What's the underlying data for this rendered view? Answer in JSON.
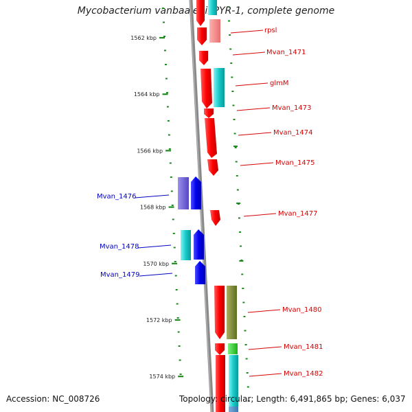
{
  "title": "Mycobacterium vanbaalenii PYR-1, complete genome",
  "accession": "Accession: NC_008726",
  "summary": "Topology: circular; Length: 6,491,865 bp; Genes: 6,037",
  "colors": {
    "backbone": "#8a8a8a",
    "ticks": "#1e8a1e",
    "forward_label": "#d40000",
    "reverse_label": "#0000c0"
  },
  "scale": [
    {
      "label": "1562 kbp",
      "kbp": 1562
    },
    {
      "label": "1564 kbp",
      "kbp": 1564
    },
    {
      "label": "1566 kbp",
      "kbp": 1566
    },
    {
      "label": "1568 kbp",
      "kbp": 1568
    },
    {
      "label": "1570 kbp",
      "kbp": 1570
    },
    {
      "label": "1572 kbp",
      "kbp": 1572
    },
    {
      "label": "1574 kbp",
      "kbp": 1574
    }
  ],
  "forward_labels": [
    {
      "id": "rpsl",
      "text": "rpsl"
    },
    {
      "id": "mvan_1471",
      "text": "Mvan_1471"
    },
    {
      "id": "glmm",
      "text": "glmM"
    },
    {
      "id": "mvan_1473",
      "text": "Mvan_1473"
    },
    {
      "id": "mvan_1474",
      "text": "Mvan_1474"
    },
    {
      "id": "mvan_1475",
      "text": "Mvan_1475"
    },
    {
      "id": "mvan_1477",
      "text": "Mvan_1477"
    },
    {
      "id": "mvan_1480",
      "text": "Mvan_1480"
    },
    {
      "id": "mvan_1481",
      "text": "Mvan_1481"
    },
    {
      "id": "mvan_1482",
      "text": "Mvan_1482"
    }
  ],
  "reverse_labels": [
    {
      "id": "mvan_1476",
      "text": "Mvan_1476"
    },
    {
      "id": "mvan_1478",
      "text": "Mvan_1478"
    },
    {
      "id": "mvan_1479",
      "text": "Mvan_1479"
    }
  ]
}
